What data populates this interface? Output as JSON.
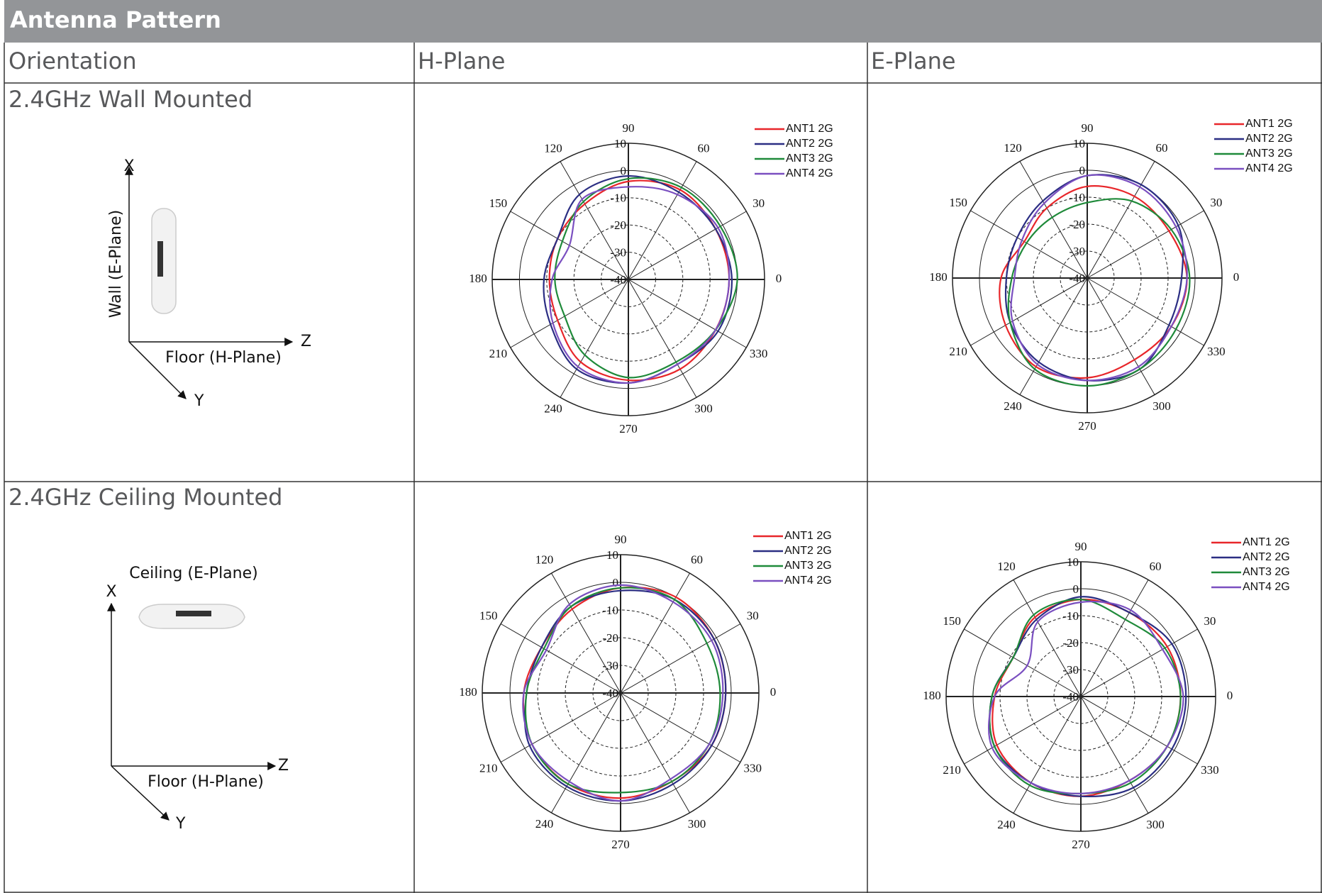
{
  "header": {
    "title": "Antenna Pattern"
  },
  "table": {
    "columns": [
      "Orientation",
      "H-Plane",
      "E-Plane"
    ],
    "rows": [
      {
        "label": "2.4GHz Wall Mounted",
        "diagram": {
          "x_axis": "X",
          "z_axis": "Z",
          "y_axis": "Y",
          "vertical_label": "Wall  (E-Plane)",
          "floor_label": "Floor  (H-Plane)"
        }
      },
      {
        "label": "2.4GHz Ceiling Mounted",
        "diagram": {
          "x_axis": "X",
          "z_axis": "Z",
          "y_axis": "Y",
          "vertical_label": "Ceiling  (E-Plane)",
          "floor_label": "Floor  (H-Plane)"
        }
      }
    ]
  },
  "chart_data": [
    {
      "type": "polar",
      "rlim": [
        -40,
        10
      ],
      "rticks": [
        -40,
        -30,
        -20,
        -10,
        0,
        10
      ],
      "angles": [
        0,
        30,
        60,
        90,
        120,
        150,
        180,
        210,
        240,
        270,
        300,
        330
      ],
      "grid": true,
      "legend": "upper right",
      "series": [
        {
          "name": "ANT1 2G",
          "color": "#e8262a",
          "values": [
            -3,
            -3,
            -2,
            -4,
            -8,
            -10,
            -11,
            -10,
            -5,
            -3,
            -2,
            -3
          ]
        },
        {
          "name": "ANT2 2G",
          "color": "#2b2e83",
          "values": [
            -2,
            -3,
            -3,
            -2,
            -4,
            -10,
            -9,
            -7,
            -2,
            -2,
            -4,
            -2
          ]
        },
        {
          "name": "ANT3 2G",
          "color": "#1f8a3a",
          "values": [
            0,
            -1,
            -1,
            -3,
            -7,
            -12,
            -13,
            -13,
            -8,
            -4,
            -5,
            -3
          ]
        },
        {
          "name": "ANT4 2G",
          "color": "#7a4fc0",
          "values": [
            -3,
            -2,
            -4,
            -6,
            -6,
            -15,
            -12,
            -8,
            -3,
            -2,
            -4,
            -3
          ]
        }
      ]
    },
    {
      "type": "polar",
      "rlim": [
        -40,
        10
      ],
      "rticks": [
        -40,
        -30,
        -20,
        -10,
        0,
        10
      ],
      "angles": [
        0,
        30,
        60,
        90,
        120,
        150,
        180,
        210,
        240,
        270,
        300,
        330
      ],
      "grid": true,
      "legend": "upper right",
      "series": [
        {
          "name": "ANT1 2G",
          "color": "#e8262a",
          "values": [
            -3,
            -5,
            -5,
            -6,
            -10,
            -13,
            -8,
            -5,
            -2,
            -3,
            -5,
            -4
          ]
        },
        {
          "name": "ANT2 2G",
          "color": "#2b2e83",
          "values": [
            -5,
            -1,
            0,
            -2,
            -7,
            -10,
            -10,
            -7,
            -4,
            -2,
            -1,
            -5
          ]
        },
        {
          "name": "ANT3 2G",
          "color": "#1f8a3a",
          "values": [
            -2,
            -4,
            -7,
            -12,
            -14,
            -14,
            -12,
            -7,
            -1,
            0,
            -1,
            -2
          ]
        },
        {
          "name": "ANT4 2G",
          "color": "#7a4fc0",
          "values": [
            -3,
            -2,
            -1,
            -2,
            -8,
            -12,
            -13,
            -8,
            -3,
            -2,
            -2,
            -4
          ]
        }
      ]
    },
    {
      "type": "polar",
      "rlim": [
        -40,
        10
      ],
      "rticks": [
        -40,
        -30,
        -20,
        -10,
        0,
        10
      ],
      "angles": [
        0,
        30,
        60,
        90,
        120,
        150,
        180,
        210,
        240,
        270,
        300,
        330
      ],
      "grid": true,
      "legend": "upper right",
      "series": [
        {
          "name": "ANT1 2G",
          "color": "#e8262a",
          "values": [
            -2,
            -1,
            0,
            -2,
            -5,
            -7,
            -5,
            -3,
            -2,
            -2,
            -3,
            -2
          ]
        },
        {
          "name": "ANT2 2G",
          "color": "#2b2e83",
          "values": [
            -2,
            -1,
            -1,
            -3,
            -4,
            -7,
            -6,
            -2,
            -1,
            -1,
            -2,
            -2
          ]
        },
        {
          "name": "ANT3 2G",
          "color": "#1f8a3a",
          "values": [
            -4,
            -4,
            -1,
            -2,
            -4,
            -8,
            -6,
            -3,
            -2,
            -4,
            -3,
            -3
          ]
        },
        {
          "name": "ANT4 2G",
          "color": "#7a4fc0",
          "values": [
            -3,
            -2,
            -2,
            -1,
            -3,
            -9,
            -5,
            -3,
            -3,
            -1,
            -4,
            -3
          ]
        }
      ]
    },
    {
      "type": "polar",
      "rlim": [
        -40,
        10
      ],
      "rticks": [
        -40,
        -30,
        -20,
        -10,
        0,
        10
      ],
      "angles": [
        0,
        30,
        60,
        90,
        120,
        150,
        180,
        210,
        240,
        270,
        300,
        330
      ],
      "grid": true,
      "legend": "upper right",
      "series": [
        {
          "name": "ANT1 2G",
          "color": "#e8262a",
          "values": [
            -3,
            -3,
            -4,
            -4,
            -6,
            -11,
            -8,
            -4,
            -3,
            -3,
            -4,
            -3
          ]
        },
        {
          "name": "ANT2 2G",
          "color": "#2b2e83",
          "values": [
            -1,
            -1,
            -4,
            -3,
            -7,
            -11,
            -7,
            -3,
            -3,
            -3,
            -1,
            -1
          ]
        },
        {
          "name": "ANT3 2G",
          "color": "#1f8a3a",
          "values": [
            -3,
            -4,
            -7,
            -4,
            -5,
            -11,
            -7,
            -3,
            -2,
            -4,
            -3,
            -3
          ]
        },
        {
          "name": "ANT4 2G",
          "color": "#7a4fc0",
          "values": [
            -2,
            -5,
            -3,
            -5,
            -8,
            -17,
            -8,
            -2,
            -3,
            -4,
            -4,
            -3
          ]
        }
      ]
    }
  ]
}
